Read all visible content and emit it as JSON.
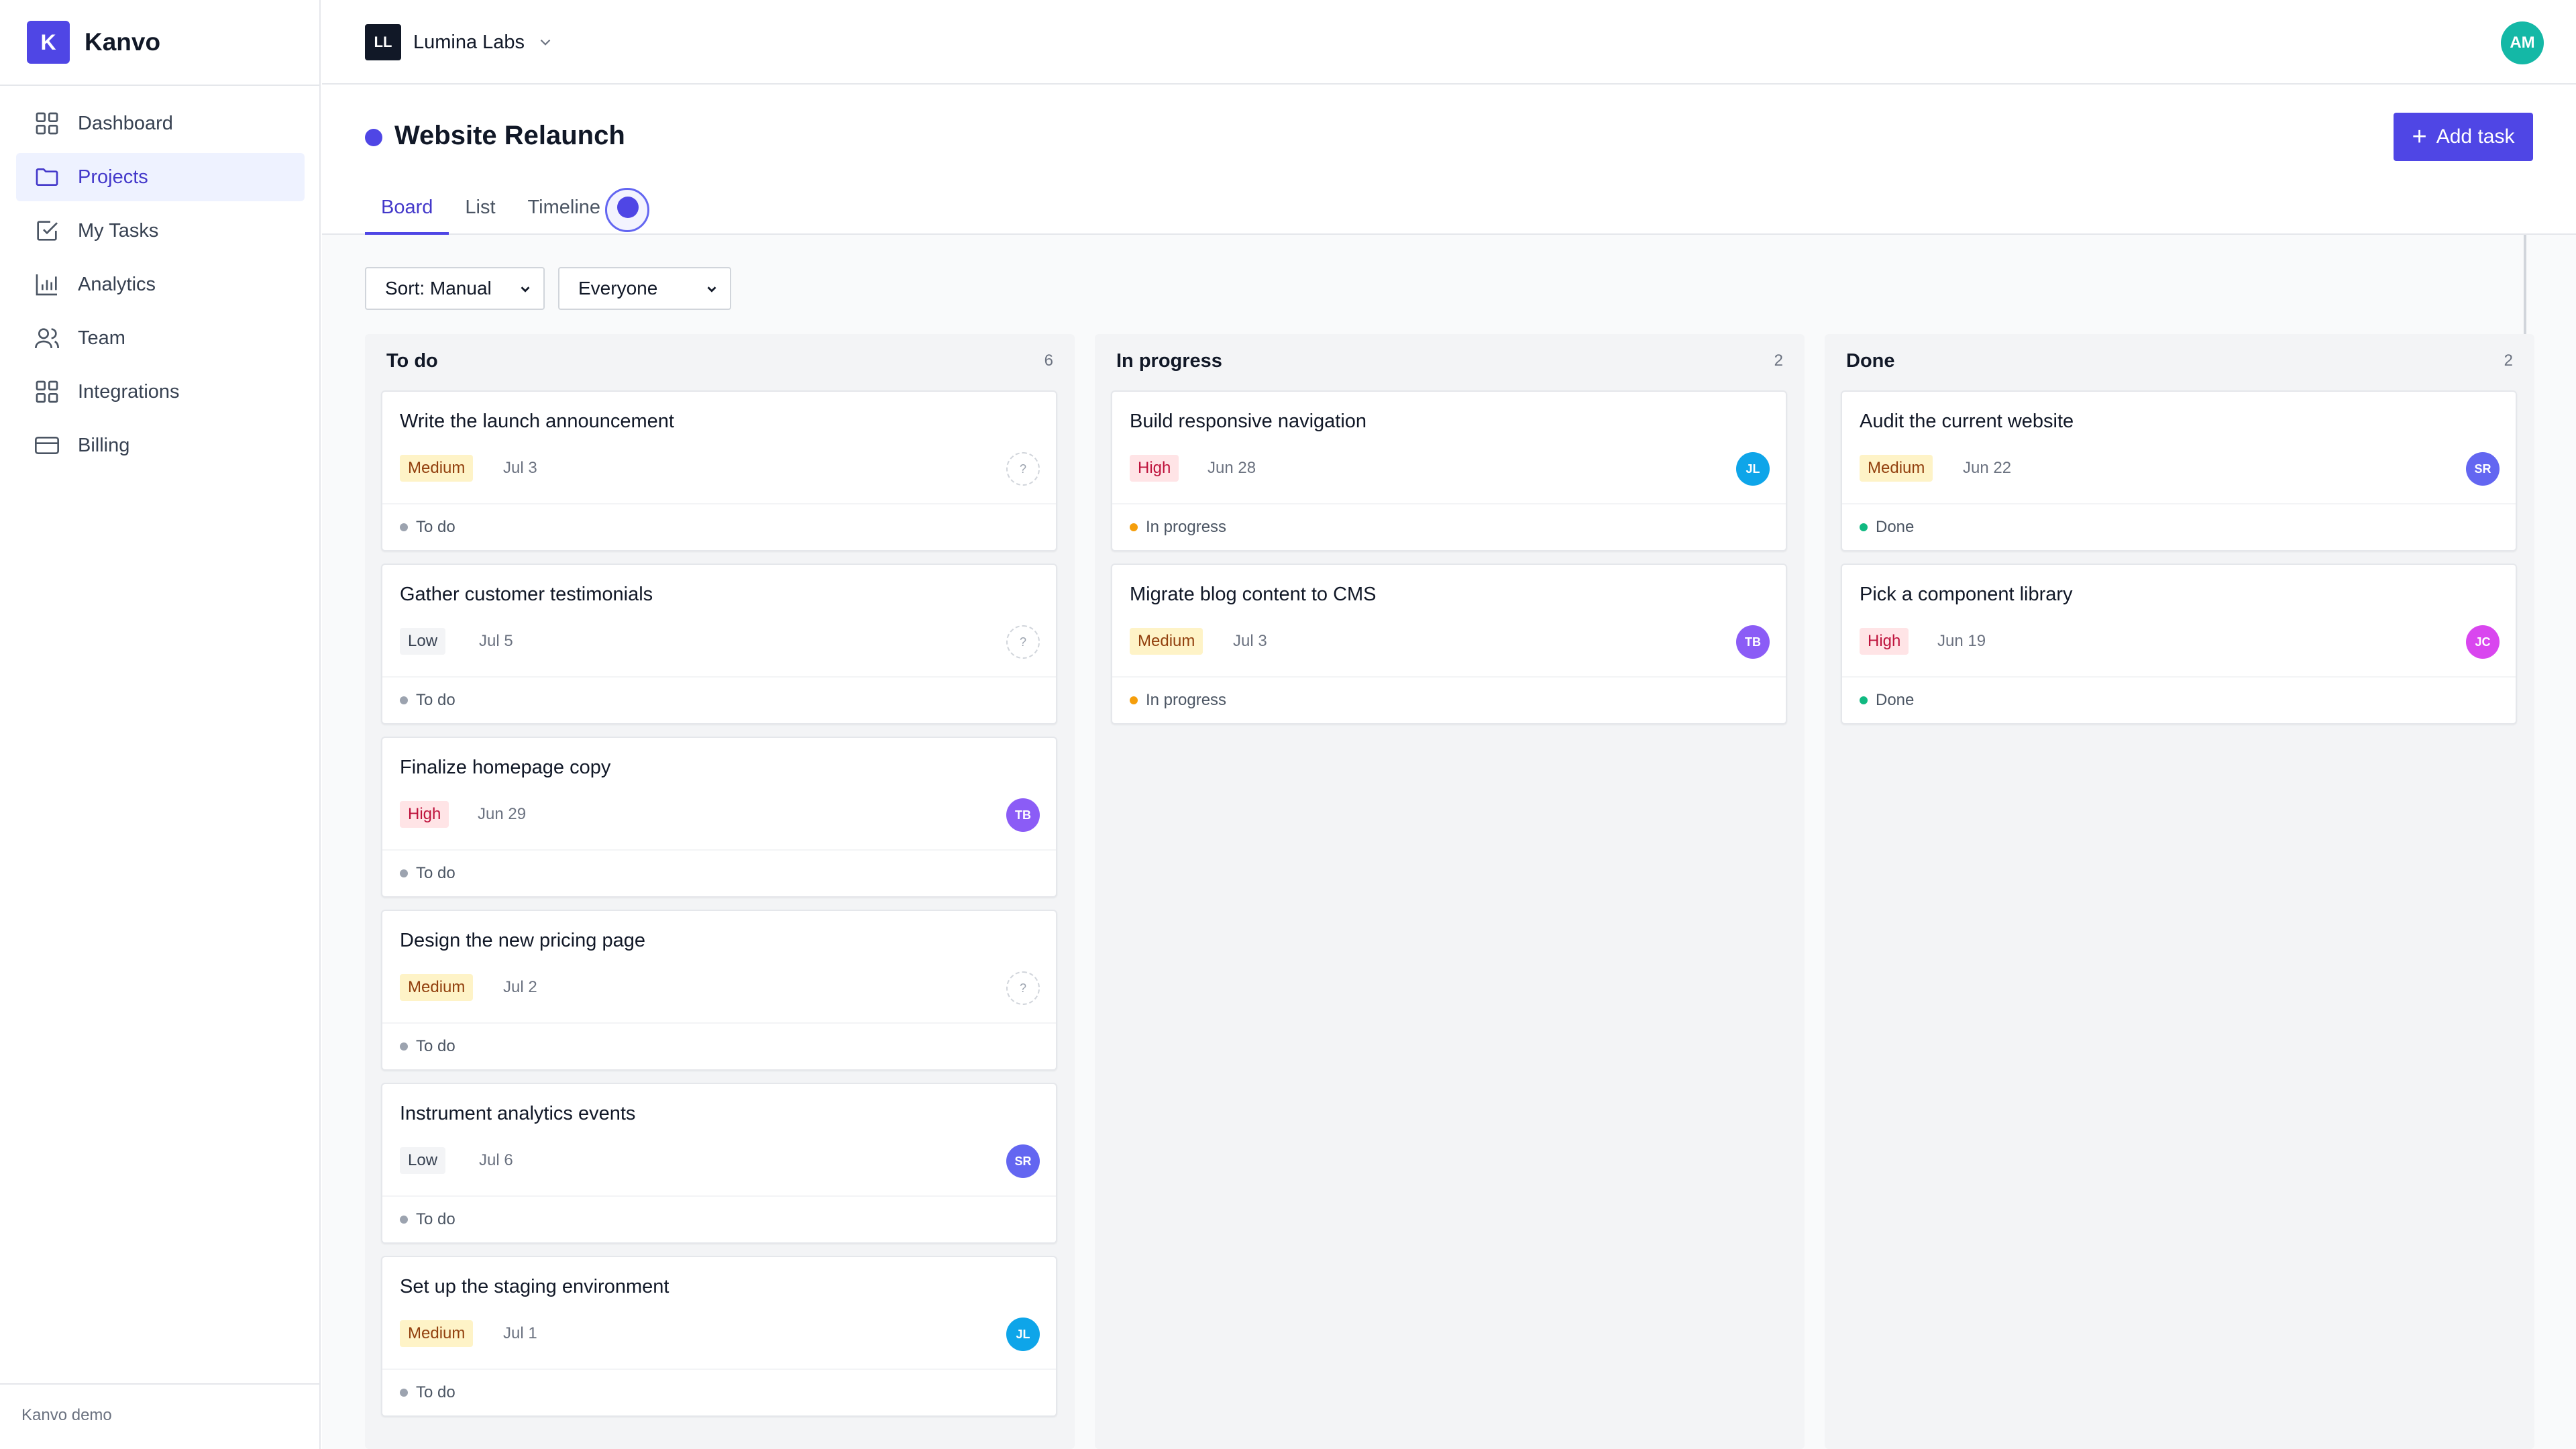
{
  "app": {
    "logo_letter": "K",
    "name": "Kanvo",
    "footer": "Kanvo demo"
  },
  "sidebar": {
    "items": [
      {
        "label": "Dashboard",
        "icon": "dashboard-icon",
        "active": false
      },
      {
        "label": "Projects",
        "icon": "folder-icon",
        "active": true
      },
      {
        "label": "My Tasks",
        "icon": "checkbox-icon",
        "active": false
      },
      {
        "label": "Analytics",
        "icon": "bar-chart-icon",
        "active": false
      },
      {
        "label": "Team",
        "icon": "users-icon",
        "active": false
      },
      {
        "label": "Integrations",
        "icon": "grid-icon",
        "active": false
      },
      {
        "label": "Billing",
        "icon": "credit-card-icon",
        "active": false
      }
    ]
  },
  "header": {
    "org_initials": "LL",
    "org_name": "Lumina Labs",
    "user_initials": "AM"
  },
  "project": {
    "title": "Website Relaunch",
    "add_task_label": "Add task",
    "tabs": [
      {
        "label": "Board",
        "active": true
      },
      {
        "label": "List",
        "active": false
      },
      {
        "label": "Timeline",
        "active": false
      }
    ]
  },
  "filters": {
    "sort": "Sort: Manual",
    "assignee": "Everyone"
  },
  "colors": {
    "accent": "#4f46e5",
    "assignee": {
      "JL": "#0ea5e9",
      "TB": "#8b5cf6",
      "SR": "#6366f1",
      "JC": "#d946ef"
    },
    "status_dot": {
      "To do": "#9ca3af",
      "In progress": "#f59e0b",
      "Done": "#10b981"
    }
  },
  "columns": [
    {
      "title": "To do",
      "count": "6",
      "cards": [
        {
          "title": "Write the launch announcement",
          "priority": "Medium",
          "due": "Jul 3",
          "assignee": "?",
          "status": "To do"
        },
        {
          "title": "Gather customer testimonials",
          "priority": "Low",
          "due": "Jul 5",
          "assignee": "?",
          "status": "To do"
        },
        {
          "title": "Finalize homepage copy",
          "priority": "High",
          "due": "Jun 29",
          "assignee": "TB",
          "status": "To do"
        },
        {
          "title": "Design the new pricing page",
          "priority": "Medium",
          "due": "Jul 2",
          "assignee": "?",
          "status": "To do"
        },
        {
          "title": "Instrument analytics events",
          "priority": "Low",
          "due": "Jul 6",
          "assignee": "SR",
          "status": "To do"
        },
        {
          "title": "Set up the staging environment",
          "priority": "Medium",
          "due": "Jul 1",
          "assignee": "JL",
          "status": "To do"
        }
      ]
    },
    {
      "title": "In progress",
      "count": "2",
      "cards": [
        {
          "title": "Build responsive navigation",
          "priority": "High",
          "due": "Jun 28",
          "assignee": "JL",
          "status": "In progress"
        },
        {
          "title": "Migrate blog content to CMS",
          "priority": "Medium",
          "due": "Jul 3",
          "assignee": "TB",
          "status": "In progress"
        }
      ]
    },
    {
      "title": "Done",
      "count": "2",
      "cards": [
        {
          "title": "Audit the current website",
          "priority": "Medium",
          "due": "Jun 22",
          "assignee": "SR",
          "status": "Done"
        },
        {
          "title": "Pick a component library",
          "priority": "High",
          "due": "Jun 19",
          "assignee": "JC",
          "status": "Done"
        }
      ]
    }
  ]
}
